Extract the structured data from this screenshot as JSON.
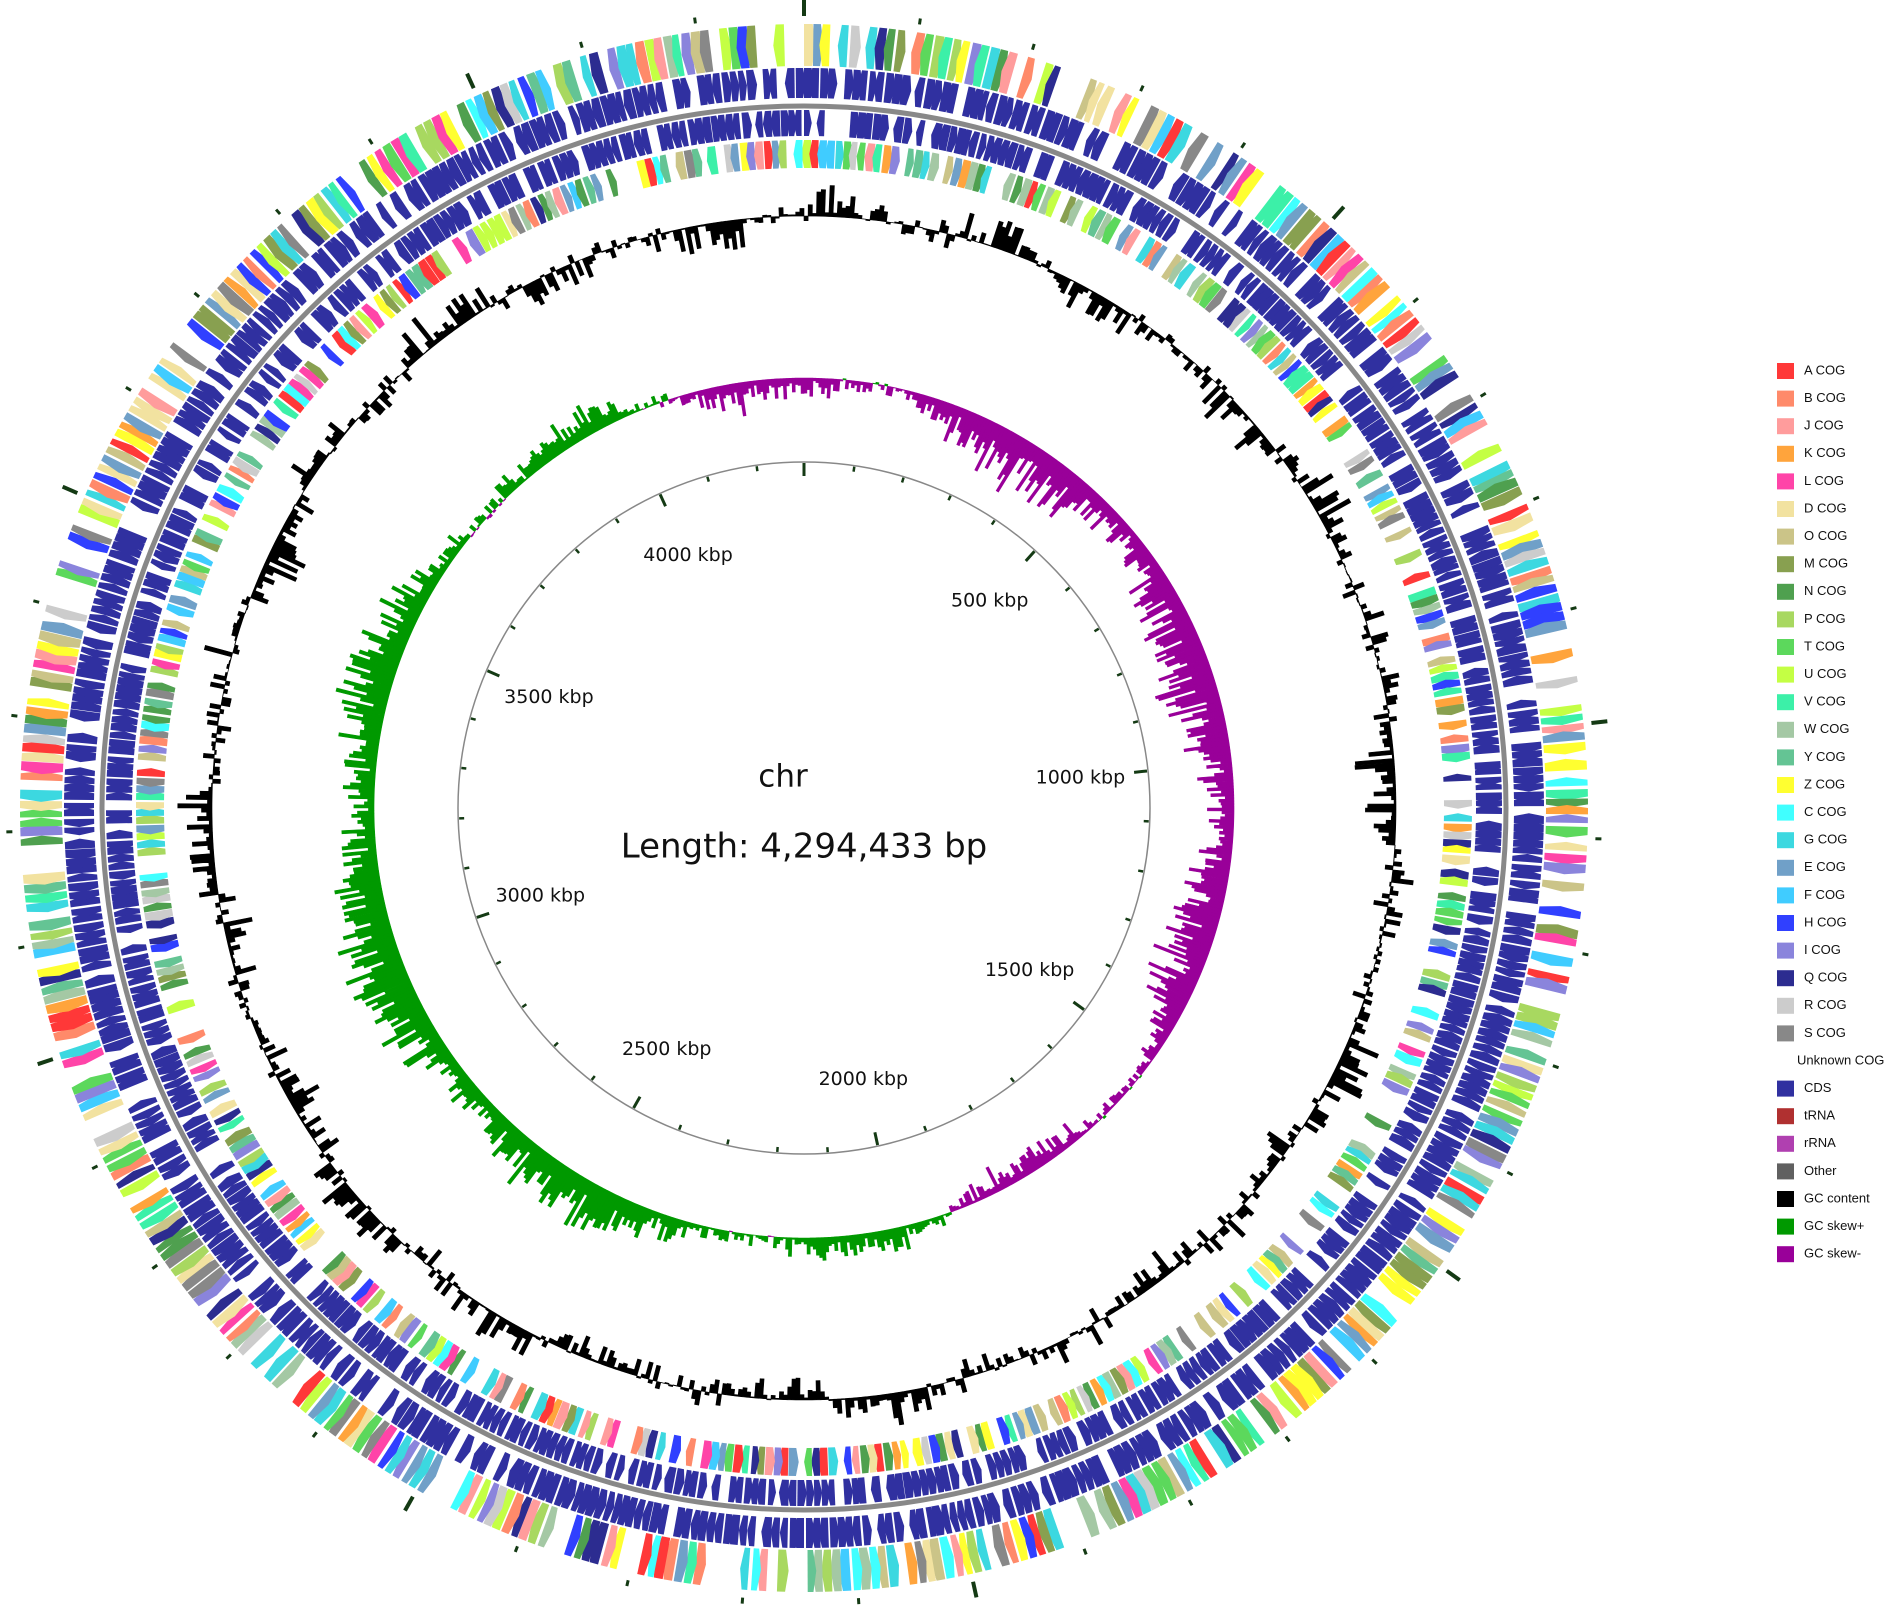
{
  "map": {
    "name": "chr",
    "length": "Length: 4,294,433 bp",
    "ruler_labels": [
      "500 kbp",
      "1000 kbp",
      "1500 kbp",
      "2000 kbp",
      "2500 kbp",
      "3000 kbp",
      "3500 kbp",
      "4000 kbp"
    ]
  },
  "legend": [
    {
      "label": "A COG",
      "color": "#ff3838"
    },
    {
      "label": "B COG",
      "color": "#ff8a6a"
    },
    {
      "label": "J COG",
      "color": "#ff9c9c"
    },
    {
      "label": "K COG",
      "color": "#ffa43c"
    },
    {
      "label": "L COG",
      "color": "#ff44a8"
    },
    {
      "label": "D COG",
      "color": "#f2e2a0"
    },
    {
      "label": "O COG",
      "color": "#cbc488"
    },
    {
      "label": "M COG",
      "color": "#88a050"
    },
    {
      "label": "N COG",
      "color": "#4fa04f"
    },
    {
      "label": "P COG",
      "color": "#a8d860"
    },
    {
      "label": "T COG",
      "color": "#5cd85c"
    },
    {
      "label": "U COG",
      "color": "#c4ff44"
    },
    {
      "label": "V COG",
      "color": "#3cf0a8"
    },
    {
      "label": "W COG",
      "color": "#a4c8a4"
    },
    {
      "label": "Y COG",
      "color": "#64c494"
    },
    {
      "label": "Z COG",
      "color": "#ffff30"
    },
    {
      "label": "C COG",
      "color": "#40ffff"
    },
    {
      "label": "G COG",
      "color": "#3cd8e0"
    },
    {
      "label": "E COG",
      "color": "#70a0c8"
    },
    {
      "label": "F COG",
      "color": "#40ccff"
    },
    {
      "label": "H COG",
      "color": "#3040ff"
    },
    {
      "label": "I COG",
      "color": "#8a84dc"
    },
    {
      "label": "Q COG",
      "color": "#2c2c90"
    },
    {
      "label": "R COG",
      "color": "#cccccc"
    },
    {
      "label": "S COG",
      "color": "#888888"
    },
    {
      "label": "Unknown COG",
      "color": "#ffffff"
    },
    {
      "label": "CDS",
      "color": "#3030a0"
    },
    {
      "label": "tRNA",
      "color": "#b03030"
    },
    {
      "label": "rRNA",
      "color": "#b040b0"
    },
    {
      "label": "Other",
      "color": "#606060"
    },
    {
      "label": "GC content",
      "color": "#000000"
    },
    {
      "label": "GC skew+",
      "color": "#009900"
    },
    {
      "label": "GC skew-",
      "color": "#990099"
    }
  ]
}
